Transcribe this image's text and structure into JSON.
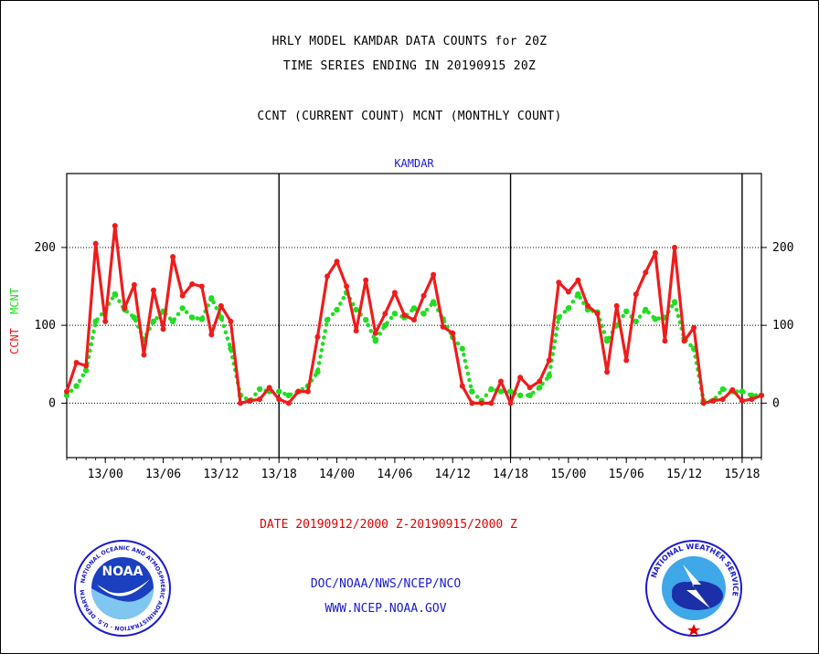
{
  "titles": {
    "line1": "HRLY MODEL KAMDAR DATA COUNTS for 20Z",
    "line2": "TIME SERIES ENDING IN 20190915 20Z",
    "line3": "CCNT (CURRENT COUNT) MCNT (MONTHLY COUNT)"
  },
  "footer": {
    "date_range": "DATE 20190912/2000 Z-20190915/2000 Z",
    "org": "DOC/NOAA/NWS/NCEP/NCO",
    "url": "WWW.NCEP.NOAA.GOV"
  },
  "logos": {
    "noaa": {
      "center_text": "NOAA",
      "ring_text": "NATIONAL OCEANIC AND ATMOSPHERIC ADMINISTRATION · U.S. DEPARTMENT OF COMMERCE"
    },
    "nws": {
      "ring_text": "NATIONAL WEATHER SERVICE"
    }
  },
  "colors": {
    "ccnt": "#ee1c1c",
    "mcnt": "#22dd22",
    "axis": "#000000",
    "panel_title": "#1a1acc"
  },
  "chart_data": {
    "type": "line",
    "title": "KAMDAR",
    "ylabel_series": [
      "CCNT",
      "MCNT"
    ],
    "ylim": [
      -70,
      295
    ],
    "yticks": [
      0,
      100,
      200
    ],
    "ytick_labels": [
      "0",
      "100",
      "200"
    ],
    "xlim": [
      0,
      72
    ],
    "xticks": [
      4,
      10,
      16,
      22,
      28,
      34,
      40,
      46,
      52,
      58,
      64,
      70
    ],
    "xtick_labels": [
      "13/00",
      "13/06",
      "13/12",
      "13/18",
      "14/00",
      "14/06",
      "14/12",
      "14/18",
      "15/00",
      "15/06",
      "15/12",
      "15/18"
    ],
    "day_boundaries": [
      22,
      46,
      70
    ],
    "grid": "horizontal",
    "series": [
      {
        "name": "CCNT",
        "style": "solid",
        "x": [
          0,
          1,
          2,
          3,
          4,
          5,
          6,
          7,
          8,
          9,
          10,
          11,
          12,
          13,
          14,
          15,
          16,
          17,
          18,
          19,
          20,
          21,
          22,
          23,
          24,
          25,
          26,
          27,
          28,
          29,
          30,
          31,
          32,
          33,
          34,
          35,
          36,
          37,
          38,
          39,
          40,
          41,
          42,
          43,
          44,
          45,
          46,
          47,
          48,
          49,
          50,
          51,
          52,
          53,
          54,
          55,
          56,
          57,
          58,
          59,
          60,
          61,
          62,
          63,
          64,
          65,
          66,
          67,
          68,
          69,
          70,
          71,
          72
        ],
        "values": [
          15,
          52,
          48,
          205,
          105,
          228,
          122,
          152,
          62,
          145,
          95,
          188,
          138,
          153,
          150,
          88,
          125,
          105,
          0,
          3,
          5,
          20,
          5,
          0,
          15,
          15,
          85,
          163,
          182,
          150,
          93,
          158,
          90,
          115,
          142,
          113,
          107,
          138,
          165,
          98,
          90,
          22,
          0,
          0,
          0,
          28,
          0,
          33,
          20,
          28,
          55,
          155,
          143,
          158,
          125,
          115,
          40,
          125,
          55,
          140,
          168,
          193,
          80,
          200,
          80,
          97,
          0,
          3,
          5,
          17,
          3,
          5,
          10
        ]
      },
      {
        "name": "MCNT",
        "style": "dotted",
        "x": [
          0,
          1,
          2,
          3,
          4,
          5,
          6,
          7,
          8,
          9,
          10,
          11,
          12,
          13,
          14,
          15,
          16,
          17,
          18,
          19,
          20,
          21,
          22,
          23,
          24,
          25,
          26,
          27,
          28,
          29,
          30,
          31,
          32,
          33,
          34,
          35,
          36,
          37,
          38,
          39,
          40,
          41,
          42,
          43,
          44,
          45,
          46,
          47,
          48,
          49,
          50,
          51,
          52,
          53,
          54,
          55,
          56,
          57,
          58,
          59,
          60,
          61,
          62,
          63,
          64,
          65,
          66,
          67,
          68,
          69,
          70,
          71,
          72
        ],
        "values": [
          10,
          22,
          42,
          105,
          120,
          140,
          120,
          110,
          82,
          105,
          118,
          105,
          122,
          110,
          108,
          135,
          110,
          70,
          10,
          3,
          18,
          15,
          15,
          10,
          15,
          22,
          40,
          107,
          120,
          142,
          120,
          107,
          80,
          100,
          115,
          110,
          122,
          115,
          130,
          108,
          85,
          70,
          15,
          3,
          18,
          15,
          15,
          10,
          10,
          20,
          35,
          110,
          122,
          140,
          120,
          117,
          80,
          100,
          118,
          105,
          120,
          108,
          110,
          130,
          83,
          70,
          3,
          3,
          18,
          15,
          15,
          10,
          10
        ]
      }
    ]
  }
}
